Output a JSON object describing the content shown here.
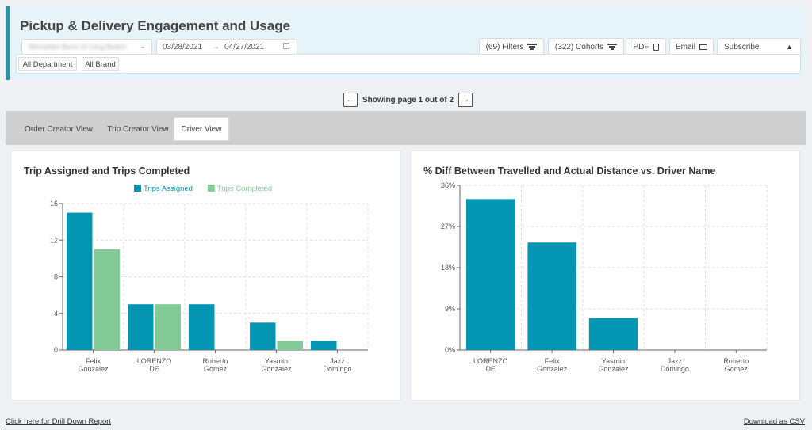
{
  "page": {
    "title": "Pickup & Delivery Engagement and Usage"
  },
  "filters": {
    "dealer": "Mercedes-Benz of Long Beach",
    "date_start": "03/28/2021",
    "date_end": "04/27/2021"
  },
  "toolbar": {
    "filters_label": "(69) Filters",
    "cohorts_label": "(322) Cohorts",
    "pdf_label": "PDF",
    "email_label": "Email",
    "subscribe_label": "Subscribe"
  },
  "chips": [
    "All Department",
    "All Brand"
  ],
  "pager": {
    "text": "Showing page 1 out of 2",
    "prev": "←",
    "next": "→"
  },
  "tabs": [
    {
      "label": "Order Creator View",
      "active": false
    },
    {
      "label": "Trip Creator View",
      "active": false
    },
    {
      "label": "Driver View",
      "active": true
    }
  ],
  "chart_data": [
    {
      "type": "bar",
      "title": "Trip Assigned and Trips Completed",
      "categories": [
        "Felix Gonzalez",
        "LORENZO DE",
        "Roberto Gomez",
        "Yasmin Gonzalez",
        "Jazz Domingo"
      ],
      "series": [
        {
          "name": "Trips Assigned",
          "color": "#0596b3",
          "values": [
            15,
            5,
            5,
            3,
            1
          ]
        },
        {
          "name": "Trips Completed",
          "color": "#84ca98",
          "values": [
            11,
            5,
            0,
            1,
            0
          ]
        }
      ],
      "yticks": [
        "0",
        "4",
        "8",
        "12",
        "16"
      ],
      "ylim": [
        0,
        16
      ],
      "grid": true,
      "legend": "top-center"
    },
    {
      "type": "bar",
      "title": "% Diff Between Travelled and Actual Distance vs. Driver Name",
      "categories": [
        "LORENZO DE",
        "Felix Gonzalez",
        "Yasmin Gonzalez",
        "Jazz Domingo",
        "Roberto Gomez"
      ],
      "series": [
        {
          "color": "#0596b3",
          "values": [
            33,
            23.5,
            7,
            0,
            0
          ]
        }
      ],
      "yticks": [
        "0%",
        "9%",
        "18%",
        "27%",
        "36%"
      ],
      "ylim": [
        0,
        36
      ],
      "grid": true
    }
  ],
  "footer": {
    "drilldown_label": "Click here for Drill Down Report",
    "csv_label": "Download as CSV"
  },
  "colors": {
    "accent": "#1a9aa8",
    "bar_primary": "#0596b3",
    "bar_secondary": "#84ca98"
  }
}
